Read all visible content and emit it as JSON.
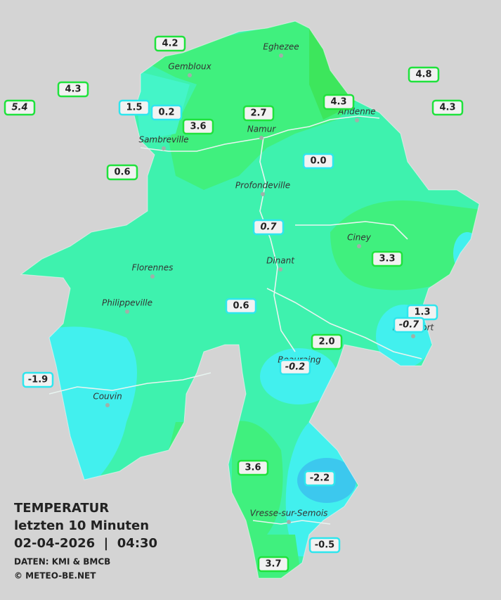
{
  "legend": {
    "title": "TEMPERATUR",
    "subtitle": "letzten 10 Minuten",
    "datetime": "02-04-2026  |  04:30",
    "source": "DATEN: KMI & BMCB",
    "copyright": "© METEO-BE.NET"
  },
  "towns": [
    "Eghezee",
    "Gembloux",
    "Andenne",
    "Namur",
    "Sambreville",
    "Profondeville",
    "Ciney",
    "Dinant",
    "Florennes",
    "Philippeville",
    "Rochefort",
    "Beauraing",
    "Couvin",
    "Vresse-sur-Semois"
  ],
  "stations": [
    "4.2",
    "4.3",
    "5.4",
    "1.5",
    "0.2",
    "3.6",
    "2.7",
    "4.3",
    "4.8",
    "4.3",
    "0.6",
    "0.0",
    "0.7",
    "3.3",
    "0.6",
    "1.3",
    "-0.7",
    "2.0",
    "-0.2",
    "-1.9",
    "3.6",
    "-2.2",
    "-0.5",
    "3.7"
  ]
}
